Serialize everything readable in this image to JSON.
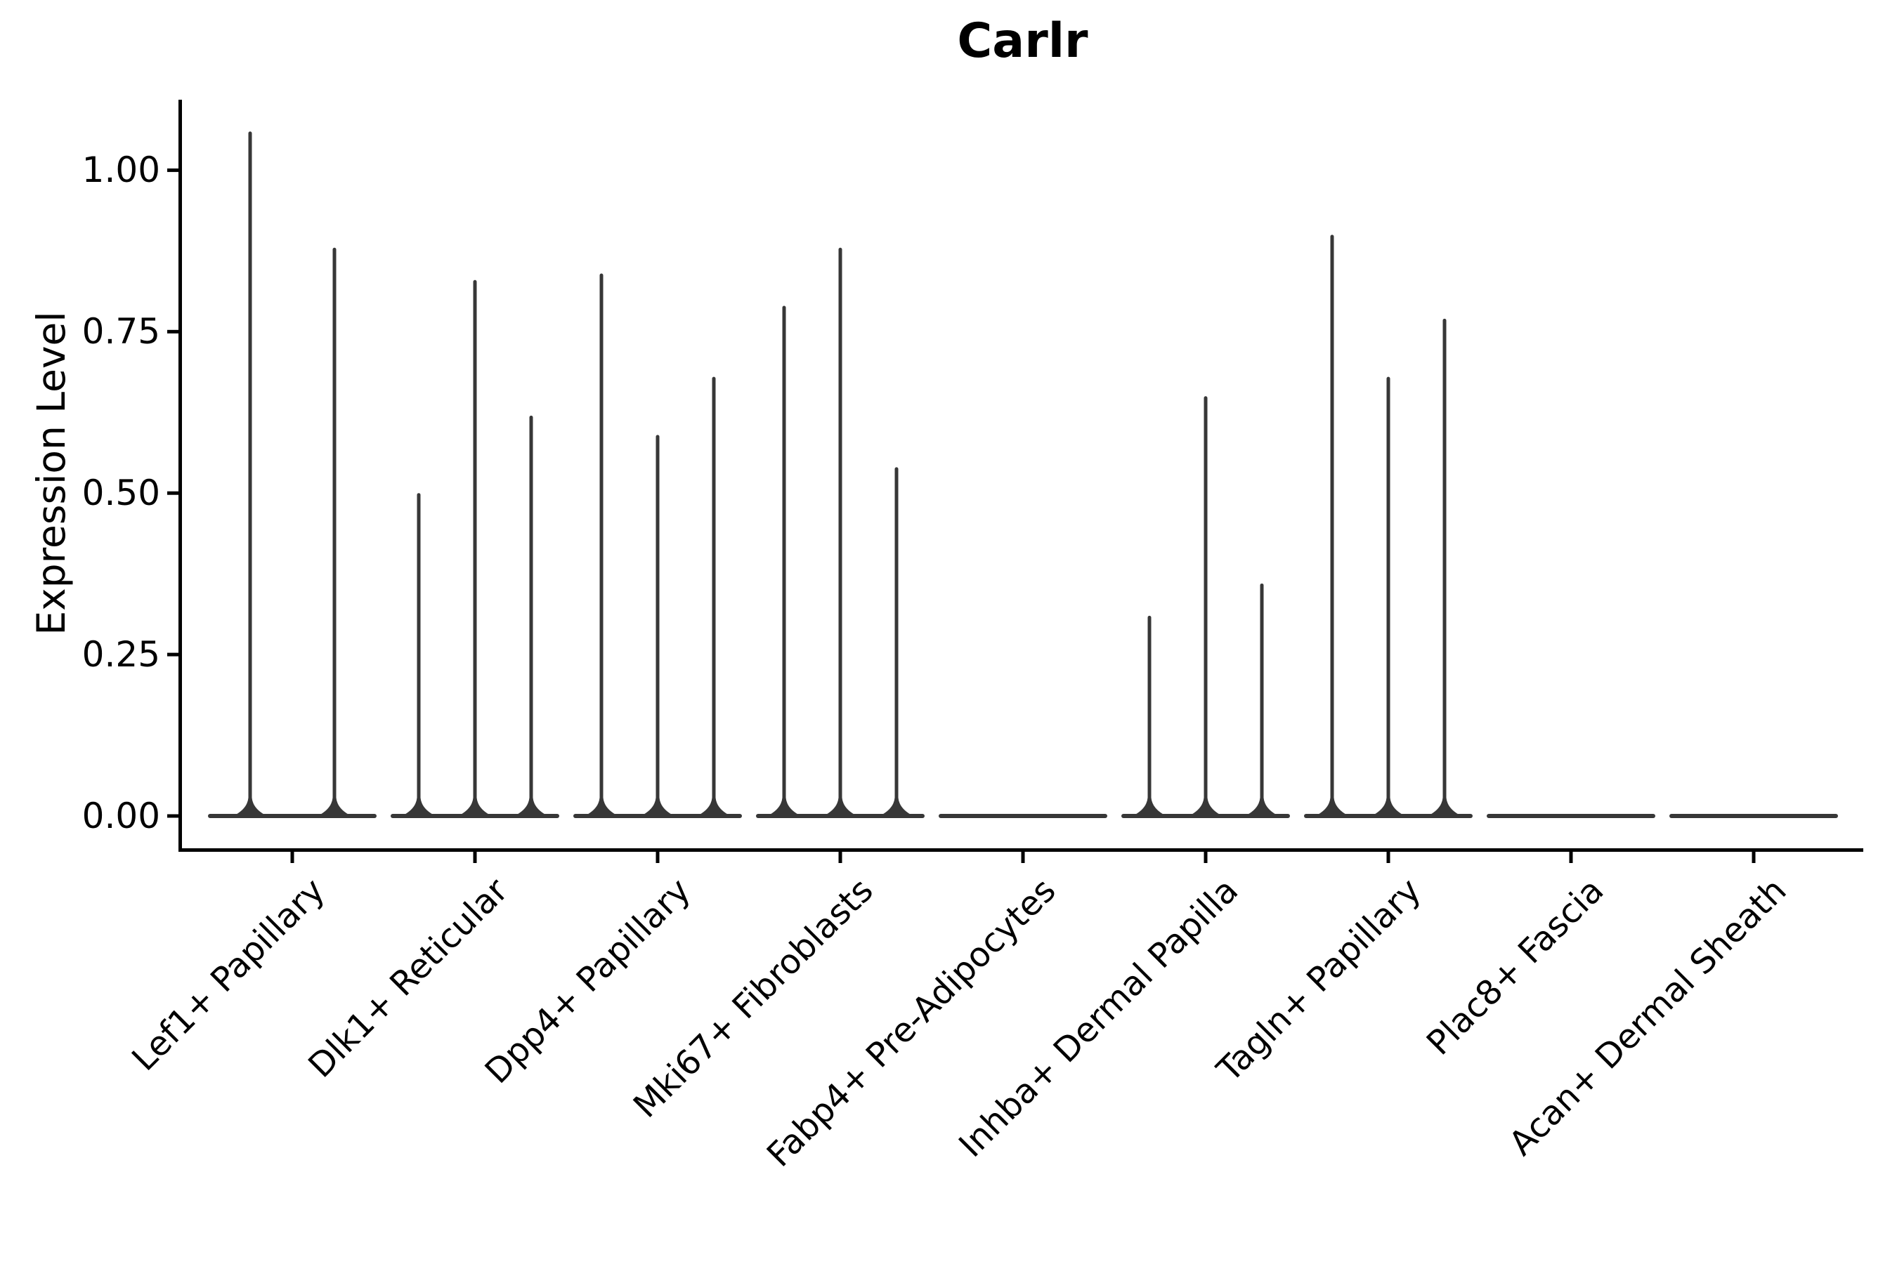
{
  "chart_data": {
    "type": "violin",
    "title": "Carlr",
    "xlabel": "",
    "ylabel": "Expression Level",
    "categories": [
      "Lef1+ Papillary",
      "Dlk1+ Reticular",
      "Dpp4+ Papillary",
      "Mki67+ Fibroblasts",
      "Fabp4+ Pre-Adipocytes",
      "Inhba+ Dermal Papilla",
      "Tagln+ Papillary",
      "Plac8+ Fascia",
      "Acan+ Dermal Sheath"
    ],
    "yticks": [
      0,
      0.25,
      0.5,
      0.75,
      1.0
    ],
    "ytick_labels": [
      "0.00",
      "0.25",
      "0.50",
      "0.75",
      "1.00"
    ],
    "ylim": [
      -0.05,
      1.11
    ],
    "grid": false,
    "legend": "none",
    "description": "Collapsed violin plot: each cluster shows a flat density body at 0 with thin vertical spikes marking the maximum expression tails of its sub-violins",
    "groups": [
      {
        "category": "Lef1+ Papillary",
        "spikes": [
          {
            "offset": -60,
            "value": 1.06
          },
          {
            "offset": 60,
            "value": 0.88
          }
        ]
      },
      {
        "category": "Dlk1+ Reticular",
        "spikes": [
          {
            "offset": -80,
            "value": 0.5
          },
          {
            "offset": 0,
            "value": 0.83
          },
          {
            "offset": 80,
            "value": 0.62
          }
        ]
      },
      {
        "category": "Dpp4+ Papillary",
        "spikes": [
          {
            "offset": -80,
            "value": 0.84
          },
          {
            "offset": 0,
            "value": 0.59
          },
          {
            "offset": 80,
            "value": 0.68
          }
        ]
      },
      {
        "category": "Mki67+ Fibroblasts",
        "spikes": [
          {
            "offset": -80,
            "value": 0.79
          },
          {
            "offset": 0,
            "value": 0.88
          },
          {
            "offset": 80,
            "value": 0.54
          }
        ]
      },
      {
        "category": "Fabp4+ Pre-Adipocytes",
        "spikes": []
      },
      {
        "category": "Inhba+ Dermal Papilla",
        "spikes": [
          {
            "offset": -80,
            "value": 0.31
          },
          {
            "offset": 0,
            "value": 0.65
          },
          {
            "offset": 80,
            "value": 0.36
          }
        ]
      },
      {
        "category": "Tagln+ Papillary",
        "spikes": [
          {
            "offset": -80,
            "value": 0.9
          },
          {
            "offset": 0,
            "value": 0.68
          },
          {
            "offset": 80,
            "value": 0.77
          }
        ]
      },
      {
        "category": "Plac8+ Fascia",
        "spikes": []
      },
      {
        "category": "Acan+ Dermal Sheath",
        "spikes": []
      }
    ],
    "colors": {
      "violin": "#373737",
      "axis": "#000000",
      "text": "#000000",
      "background": "#ffffff"
    }
  }
}
